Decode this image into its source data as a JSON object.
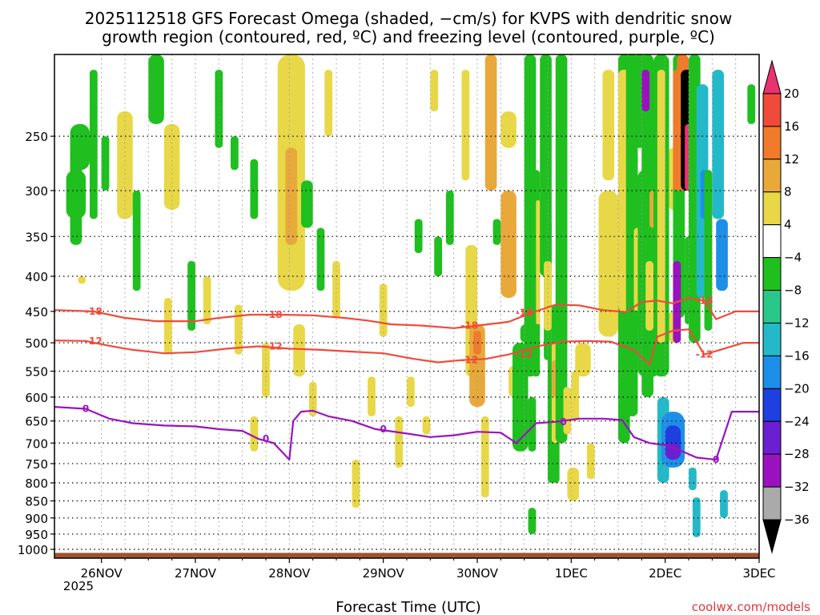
{
  "chart_data": {
    "type": "heatmap",
    "title_line1": "2025112518 GFS Forecast Omega (shaded, −cm/s) for KVPS with dendritic snow",
    "title_line2": "growth region (contoured, red, ºC) and freezing level (contoured, purple, ºC)",
    "xlabel": "Forecast Time (UTC)",
    "ylabel": "",
    "credit": "coolwx.com/models",
    "y_scale": "log-pressure",
    "y_range_hpa": [
      1030,
      190
    ],
    "y_ticks": [
      "250",
      "300",
      "350",
      "400",
      "450",
      "500",
      "550",
      "600",
      "650",
      "700",
      "750",
      "800",
      "850",
      "900",
      "950",
      "1000"
    ],
    "x_range_hours": [
      -6,
      174
    ],
    "x_ticks": [
      {
        "label": "26NOV",
        "hour": 6
      },
      {
        "label": "27NOV",
        "hour": 30
      },
      {
        "label": "28NOV",
        "hour": 54
      },
      {
        "label": "29NOV",
        "hour": 78
      },
      {
        "label": "30NOV",
        "hour": 102
      },
      {
        "label": "1DEC",
        "hour": 126
      },
      {
        "label": "2DEC",
        "hour": 150
      },
      {
        "label": "3DEC",
        "hour": 174
      }
    ],
    "x_sub_label": "2025",
    "colorbar": {
      "labels": [
        "20",
        "16",
        "12",
        "8",
        "4",
        "−4",
        "−8",
        "−12",
        "−16",
        "−20",
        "−24",
        "−28",
        "−32",
        "−36"
      ],
      "colors": [
        "#e8336f",
        "#f04a3a",
        "#f07b2a",
        "#e9a83a",
        "#e8d848",
        "#ffffff",
        "#1fbf1f",
        "#28c88a",
        "#23b9c9",
        "#1e8fe8",
        "#1f3fe0",
        "#6a1fd0",
        "#9a12c0",
        "#aaaaaa",
        "#000000"
      ]
    },
    "contours": [
      {
        "name": "freezing-level",
        "label": "0",
        "color": "#9a12c0",
        "points": [
          [
            -6,
            620
          ],
          [
            2,
            624
          ],
          [
            8,
            645
          ],
          [
            14,
            655
          ],
          [
            22,
            660
          ],
          [
            30,
            662
          ],
          [
            36,
            668
          ],
          [
            42,
            672
          ],
          [
            46,
            690
          ],
          [
            50,
            700
          ],
          [
            54,
            740
          ],
          [
            55,
            650
          ],
          [
            57,
            630
          ],
          [
            60,
            628
          ],
          [
            64,
            640
          ],
          [
            70,
            650
          ],
          [
            76,
            668
          ],
          [
            84,
            678
          ],
          [
            90,
            686
          ],
          [
            96,
            682
          ],
          [
            102,
            674
          ],
          [
            108,
            676
          ],
          [
            112,
            700
          ],
          [
            117,
            655
          ],
          [
            122,
            652
          ],
          [
            128,
            645
          ],
          [
            134,
            645
          ],
          [
            139,
            648
          ],
          [
            142,
            686
          ],
          [
            146,
            700
          ],
          [
            150,
            705
          ],
          [
            154,
            718
          ],
          [
            158,
            735
          ],
          [
            163,
            740
          ],
          [
            167,
            630
          ],
          [
            174,
            630
          ]
        ]
      },
      {
        "name": "isotherm-minus12",
        "label": "-12",
        "color": "#f04a3a",
        "points": [
          [
            -6,
            496
          ],
          [
            2,
            497
          ],
          [
            8,
            505
          ],
          [
            14,
            512
          ],
          [
            22,
            518
          ],
          [
            30,
            516
          ],
          [
            38,
            510
          ],
          [
            46,
            506
          ],
          [
            54,
            510
          ],
          [
            62,
            512
          ],
          [
            70,
            515
          ],
          [
            78,
            518
          ],
          [
            86,
            528
          ],
          [
            92,
            534
          ],
          [
            98,
            530
          ],
          [
            104,
            528
          ],
          [
            110,
            520
          ],
          [
            118,
            505
          ],
          [
            124,
            498
          ],
          [
            130,
            497
          ],
          [
            136,
            498
          ],
          [
            142,
            512
          ],
          [
            146,
            538
          ],
          [
            148,
            490
          ],
          [
            152,
            480
          ],
          [
            156,
            478
          ],
          [
            160,
            520
          ],
          [
            164,
            512
          ],
          [
            170,
            500
          ],
          [
            174,
            500
          ]
        ]
      },
      {
        "name": "isotherm-minus18",
        "label": "-18",
        "color": "#f04a3a",
        "points": [
          [
            -6,
            448
          ],
          [
            4,
            450
          ],
          [
            12,
            460
          ],
          [
            20,
            465
          ],
          [
            30,
            465
          ],
          [
            36,
            460
          ],
          [
            44,
            455
          ],
          [
            52,
            455
          ],
          [
            60,
            456
          ],
          [
            68,
            460
          ],
          [
            74,
            464
          ],
          [
            80,
            470
          ],
          [
            88,
            472
          ],
          [
            96,
            476
          ],
          [
            102,
            472
          ],
          [
            110,
            466
          ],
          [
            116,
            452
          ],
          [
            122,
            440
          ],
          [
            128,
            441
          ],
          [
            134,
            448
          ],
          [
            140,
            451
          ],
          [
            144,
            436
          ],
          [
            148,
            434
          ],
          [
            152,
            438
          ],
          [
            156,
            430
          ],
          [
            160,
            434
          ],
          [
            163,
            462
          ],
          [
            168,
            450
          ],
          [
            174,
            450
          ]
        ]
      }
    ],
    "omega_blobs": [
      [
        -2,
        1,
        260,
        360,
        2
      ],
      [
        -2,
        3,
        240,
        280,
        3
      ],
      [
        -3,
        2,
        280,
        330,
        2
      ],
      [
        0,
        2,
        400,
        410,
        4
      ],
      [
        3,
        5,
        200,
        330,
        2
      ],
      [
        6,
        8,
        250,
        300,
        3
      ],
      [
        10,
        14,
        230,
        330,
        4
      ],
      [
        14,
        16,
        300,
        420,
        3
      ],
      [
        18,
        22,
        190,
        240,
        3
      ],
      [
        22,
        26,
        240,
        320,
        4
      ],
      [
        22,
        24,
        430,
        520,
        4
      ],
      [
        28,
        30,
        380,
        480,
        3
      ],
      [
        32,
        34,
        400,
        470,
        4
      ],
      [
        35,
        37,
        200,
        260,
        2
      ],
      [
        39,
        41,
        250,
        280,
        3
      ],
      [
        40,
        42,
        440,
        520,
        4
      ],
      [
        44,
        46,
        270,
        330,
        3
      ],
      [
        44,
        46,
        640,
        720,
        4
      ],
      [
        47,
        49,
        500,
        600,
        4
      ],
      [
        51,
        58,
        190,
        420,
        4
      ],
      [
        53,
        56,
        260,
        360,
        5
      ],
      [
        55,
        58,
        470,
        560,
        4
      ],
      [
        57,
        60,
        290,
        340,
        2
      ],
      [
        59,
        61,
        570,
        640,
        4
      ],
      [
        61,
        63,
        340,
        420,
        3
      ],
      [
        63,
        65,
        200,
        250,
        4
      ],
      [
        65,
        67,
        380,
        460,
        4
      ],
      [
        70,
        72,
        740,
        870,
        4
      ],
      [
        74,
        76,
        560,
        640,
        4
      ],
      [
        77,
        79,
        410,
        490,
        4
      ],
      [
        81,
        83,
        640,
        760,
        4
      ],
      [
        84,
        86,
        560,
        620,
        4
      ],
      [
        86,
        88,
        330,
        370,
        3
      ],
      [
        88,
        90,
        640,
        680,
        4
      ],
      [
        90,
        92,
        200,
        230,
        4
      ],
      [
        91,
        93,
        350,
        400,
        2
      ],
      [
        94,
        96,
        300,
        360,
        3
      ],
      [
        98,
        100,
        200,
        290,
        4
      ],
      [
        99,
        102,
        360,
        560,
        4
      ],
      [
        100,
        104,
        470,
        620,
        5
      ],
      [
        101,
        103,
        480,
        520,
        6
      ],
      [
        103,
        105,
        640,
        840,
        4
      ],
      [
        104,
        107,
        190,
        300,
        5
      ],
      [
        106,
        108,
        330,
        360,
        2
      ],
      [
        108,
        112,
        300,
        430,
        5
      ],
      [
        108,
        112,
        230,
        260,
        4
      ],
      [
        110,
        113,
        540,
        600,
        4
      ],
      [
        111,
        115,
        500,
        720,
        2
      ],
      [
        113,
        116,
        470,
        500,
        2
      ],
      [
        115,
        117,
        600,
        720,
        2
      ],
      [
        115,
        117,
        870,
        950,
        2
      ],
      [
        114,
        117,
        190,
        560,
        2
      ],
      [
        116,
        118,
        280,
        560,
        3
      ],
      [
        117,
        118,
        310,
        470,
        4
      ],
      [
        118,
        121,
        190,
        400,
        2
      ],
      [
        119,
        121,
        330,
        530,
        3
      ],
      [
        119,
        121,
        380,
        480,
        4
      ],
      [
        120,
        122,
        500,
        800,
        2
      ],
      [
        121,
        123,
        440,
        800,
        3
      ],
      [
        121,
        123,
        500,
        700,
        4
      ],
      [
        121,
        123,
        530,
        600,
        5
      ],
      [
        122,
        125,
        190,
        700,
        2
      ],
      [
        123,
        125,
        200,
        500,
        3
      ],
      [
        124,
        126,
        580,
        680,
        4
      ],
      [
        125,
        128,
        760,
        850,
        4
      ],
      [
        126,
        128,
        550,
        650,
        4
      ],
      [
        127,
        131,
        500,
        560,
        4
      ],
      [
        130,
        132,
        700,
        790,
        4
      ],
      [
        133,
        138,
        300,
        490,
        4
      ],
      [
        134,
        137,
        200,
        290,
        4
      ],
      [
        138,
        141,
        190,
        700,
        2
      ],
      [
        138,
        141,
        200,
        450,
        4
      ],
      [
        140,
        143,
        190,
        640,
        2
      ],
      [
        141,
        143,
        260,
        480,
        3
      ],
      [
        142,
        144,
        340,
        450,
        4
      ],
      [
        142,
        145,
        190,
        260,
        2
      ],
      [
        143,
        147,
        280,
        560,
        3
      ],
      [
        144,
        147,
        190,
        600,
        2
      ],
      [
        144,
        146,
        200,
        230,
        7
      ],
      [
        145,
        147,
        380,
        480,
        4
      ],
      [
        146,
        148,
        300,
        340,
        5
      ],
      [
        146,
        148,
        500,
        560,
        2
      ],
      [
        147,
        151,
        190,
        560,
        3
      ],
      [
        148,
        150,
        200,
        500,
        4
      ],
      [
        148,
        151,
        600,
        800,
        1
      ],
      [
        149,
        155,
        630,
        760,
        0
      ],
      [
        150,
        154,
        660,
        740,
        -1
      ],
      [
        150,
        154,
        700,
        740,
        -2
      ],
      [
        151,
        153,
        260,
        320,
        4
      ],
      [
        151,
        153,
        450,
        500,
        4
      ],
      [
        152,
        155,
        190,
        460,
        2
      ],
      [
        152,
        154,
        200,
        300,
        6
      ],
      [
        152,
        154,
        380,
        500,
        7
      ],
      [
        153,
        156,
        190,
        300,
        6
      ],
      [
        154,
        157,
        200,
        300,
        8
      ],
      [
        155,
        157,
        240,
        300,
        9
      ],
      [
        155,
        157,
        350,
        470,
        3
      ],
      [
        156,
        159,
        190,
        500,
        2
      ],
      [
        156,
        158,
        760,
        820,
        1
      ],
      [
        157,
        159,
        840,
        960,
        1
      ],
      [
        158,
        161,
        210,
        430,
        1
      ],
      [
        159,
        161,
        280,
        330,
        0
      ],
      [
        160,
        162,
        280,
        480,
        2
      ],
      [
        162,
        165,
        200,
        330,
        1
      ],
      [
        163,
        166,
        330,
        420,
        0
      ],
      [
        164,
        166,
        820,
        900,
        1
      ],
      [
        171,
        173,
        210,
        240,
        2
      ]
    ]
  }
}
